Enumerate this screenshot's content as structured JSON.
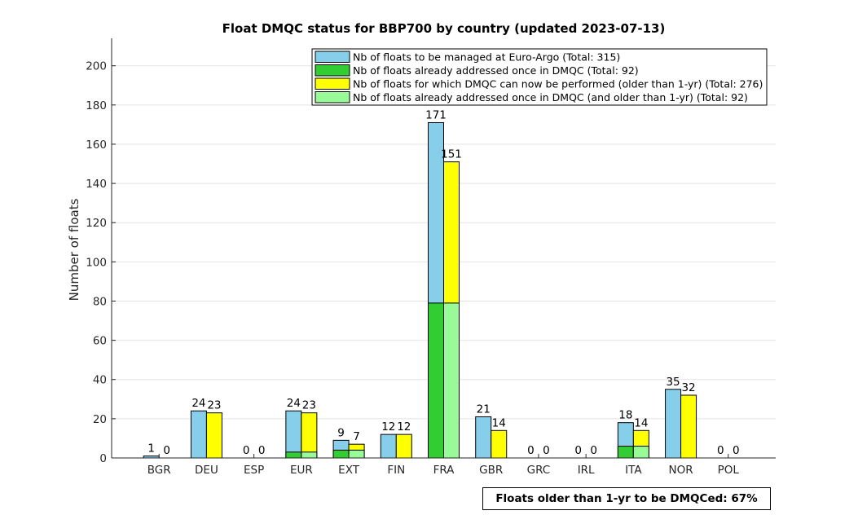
{
  "chart_data": {
    "type": "bar",
    "title": "Float DMQC status for BBP700 by country (updated 2023-07-13)",
    "xlabel": "",
    "ylabel": "Number of floats",
    "ylim": [
      0,
      214
    ],
    "yticks": [
      0,
      20,
      40,
      60,
      80,
      100,
      120,
      140,
      160,
      180,
      200
    ],
    "grid": true,
    "legend_position": "top-right",
    "categories": [
      "BGR",
      "DEU",
      "ESP",
      "EUR",
      "EXT",
      "FIN",
      "FRA",
      "GBR",
      "GRC",
      "IRL",
      "ITA",
      "NOR",
      "POL"
    ],
    "series": [
      {
        "name": "Nb of floats to be managed at Euro-Argo (Total: 315)",
        "color": "#87ceeb",
        "values": [
          1,
          24,
          0,
          24,
          9,
          12,
          171,
          21,
          0,
          0,
          18,
          35,
          0
        ]
      },
      {
        "name": "Nb of floats already addressed once in DMQC (Total: 92)",
        "color": "#32cd32",
        "values": [
          0,
          0,
          0,
          3,
          4,
          0,
          79,
          0,
          0,
          0,
          6,
          0,
          0
        ]
      },
      {
        "name": "Nb of floats for which DMQC can now be performed (older than 1-yr) (Total: 276)",
        "color": "#ffff00",
        "values": [
          0,
          23,
          0,
          23,
          7,
          12,
          151,
          14,
          0,
          0,
          14,
          32,
          0
        ]
      },
      {
        "name": "Nb of floats already addressed once in DMQC (and older than 1-yr) (Total: 92)",
        "color": "#98fb98",
        "values": [
          0,
          0,
          0,
          3,
          4,
          0,
          79,
          0,
          0,
          0,
          6,
          0,
          0
        ]
      }
    ],
    "annotation": "Floats older than 1-yr to be DMQCed: 67%"
  }
}
